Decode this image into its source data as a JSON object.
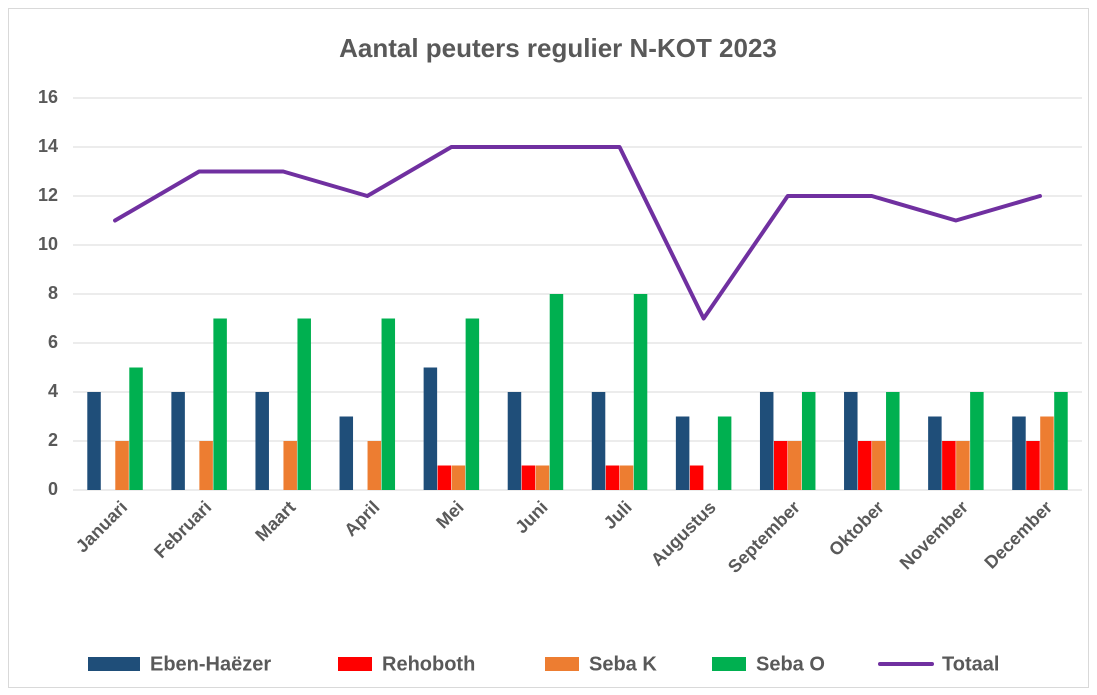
{
  "chart_data": {
    "type": "bar",
    "title": "Aantal peuters regulier N-KOT 2023",
    "categories": [
      "Januari",
      "Februari",
      "Maart",
      "April",
      "Mei",
      "Juni",
      "Juli",
      "Augustus",
      "September",
      "Oktober",
      "November",
      "December"
    ],
    "series": [
      {
        "name": "Eben-Haëzer",
        "type": "bar",
        "color": "#1f4e79",
        "values": [
          4,
          4,
          4,
          3,
          5,
          4,
          4,
          3,
          4,
          4,
          3,
          3
        ]
      },
      {
        "name": "Rehoboth",
        "type": "bar",
        "color": "#ff0000",
        "values": [
          0,
          0,
          0,
          0,
          1,
          1,
          1,
          1,
          2,
          2,
          2,
          2
        ]
      },
      {
        "name": "Seba K",
        "type": "bar",
        "color": "#ed7d31",
        "values": [
          2,
          2,
          2,
          2,
          1,
          1,
          1,
          0,
          2,
          2,
          2,
          3
        ]
      },
      {
        "name": "Seba O",
        "type": "bar",
        "color": "#00b050",
        "values": [
          5,
          7,
          7,
          7,
          7,
          8,
          8,
          3,
          4,
          4,
          4,
          4
        ]
      },
      {
        "name": "Totaal",
        "type": "line",
        "color": "#7030a0",
        "values": [
          11,
          13,
          13,
          12,
          14,
          14,
          14,
          7,
          12,
          12,
          11,
          12
        ]
      }
    ],
    "ylim": [
      0,
      16
    ],
    "yticks": [
      0,
      2,
      4,
      6,
      8,
      10,
      12,
      14,
      16
    ],
    "grid": true,
    "legend": "bottom"
  }
}
